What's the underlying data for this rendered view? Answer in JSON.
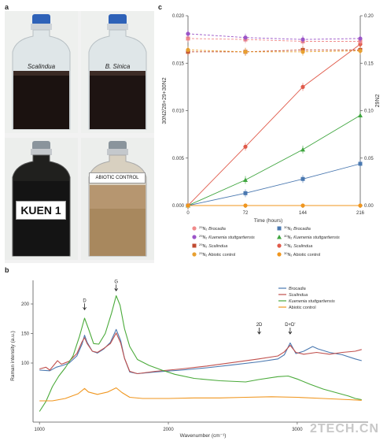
{
  "panels": {
    "a": "a",
    "b": "b",
    "c": "c"
  },
  "photos": [
    {
      "label": "Scalindua",
      "style": "italic"
    },
    {
      "label": "B. Sinica",
      "style": "italic"
    },
    {
      "label": "KUEN 1",
      "style": "card"
    },
    {
      "label": "ABIOTIC CONTROL",
      "style": "card-small"
    }
  ],
  "colors": {
    "brocadia": "#4a78b0",
    "kuenenia": "#3ea53e",
    "scalindua": "#e05a4a",
    "abiotic": "#f0961e",
    "r29_brocadia": "#f08a8a",
    "r29_kuenenia": "#9b55c8",
    "r29_scalindua": "#c04a30",
    "r29_abiotic": "#e8a030"
  },
  "chart_data": [
    {
      "id": "c",
      "type": "line",
      "xlabel": "Time (hours)",
      "ylabel_left": "30N2/28+29+30N2",
      "ylabel_right": "29N2",
      "x": [
        0,
        72,
        144,
        216
      ],
      "x_ticks": [
        "0",
        "72",
        "144",
        "216"
      ],
      "y_left_ticks": [
        "0.000",
        "0.005",
        "0.010",
        "0.015",
        "0.020"
      ],
      "y_right_ticks": [
        "0.00",
        "0.05",
        "0.10",
        "0.15",
        "0.20"
      ],
      "ylim_left": [
        0,
        0.02
      ],
      "ylim_right": [
        0,
        0.2
      ],
      "series": [
        {
          "name": "30N2 Brocadia",
          "axis": "left",
          "color": "#4a78b0",
          "marker": "square",
          "values": [
            0,
            0.0013,
            0.0028,
            0.0044
          ]
        },
        {
          "name": "30N2 Kuenenia stuttgartiensis",
          "axis": "left",
          "color": "#3ea53e",
          "marker": "triangle",
          "values": [
            0,
            0.0027,
            0.0059,
            0.0095
          ]
        },
        {
          "name": "30N2 Scalindua",
          "axis": "left",
          "color": "#e05a4a",
          "marker": "circle",
          "values": [
            0,
            0.0062,
            0.0125,
            0.017
          ]
        },
        {
          "name": "30N2 Abiotic control",
          "axis": "left",
          "color": "#f0961e",
          "marker": "circle",
          "values": [
            0,
            0,
            0,
            0
          ]
        },
        {
          "name": "29N2 Brocadia",
          "axis": "right",
          "color": "#f08a8a",
          "marker": "square",
          "values": [
            0.176,
            0.175,
            0.173,
            0.173
          ]
        },
        {
          "name": "29N2 Kuenenia stuttgartiensis",
          "axis": "right",
          "color": "#9b55c8",
          "marker": "circle",
          "values": [
            0.181,
            0.177,
            0.175,
            0.176
          ]
        },
        {
          "name": "29N2 Scalindua",
          "axis": "right",
          "color": "#c04a30",
          "marker": "square",
          "values": [
            0.162,
            0.162,
            0.164,
            0.164
          ]
        },
        {
          "name": "29N2 Abiotic control",
          "axis": "right",
          "color": "#e8a030",
          "marker": "circle",
          "values": [
            0.164,
            0.162,
            0.162,
            0.163
          ]
        }
      ],
      "legend": [
        {
          "prefix": "29",
          "sp": "Brocadia",
          "italic": true,
          "color": "#f08a8a",
          "marker": "circle"
        },
        {
          "prefix": "30",
          "sp": "Brocadia",
          "italic": true,
          "color": "#4a78b0",
          "marker": "square"
        },
        {
          "prefix": "29",
          "sp": "Kuenenia stuttgartiensis",
          "italic": true,
          "color": "#9b55c8",
          "marker": "circle"
        },
        {
          "prefix": "30",
          "sp": "Kuenenia stuttgartiensis",
          "italic": true,
          "color": "#3ea53e",
          "marker": "triangle"
        },
        {
          "prefix": "29",
          "sp": "Scalindua",
          "italic": true,
          "color": "#c04a30",
          "marker": "square"
        },
        {
          "prefix": "30",
          "sp": "Scalindua",
          "italic": true,
          "color": "#e05a4a",
          "marker": "circle"
        },
        {
          "prefix": "29",
          "sp": "Abiotic control",
          "italic": false,
          "color": "#e8a030",
          "marker": "circle"
        },
        {
          "prefix": "30",
          "sp": "Abiotic control",
          "italic": false,
          "color": "#f0961e",
          "marker": "circle"
        }
      ]
    },
    {
      "id": "b",
      "type": "line",
      "xlabel": "Wavenumber (cm⁻¹)",
      "ylabel": "Raman intensity (a.u.)",
      "xlim": [
        950,
        3550
      ],
      "ylim": [
        0,
        240
      ],
      "x_ticks": [
        1000,
        2000,
        3000
      ],
      "y_ticks": [
        100,
        150,
        200
      ],
      "annotations": [
        {
          "text": "D",
          "x": 1350,
          "y": 193
        },
        {
          "text": "G",
          "x": 1595,
          "y": 225
        },
        {
          "text": "2D",
          "x": 2705,
          "y": 152
        },
        {
          "text": "D+D'",
          "x": 2945,
          "y": 152
        }
      ],
      "legend": [
        "Brocadia",
        "Scalindua",
        "Kuenenia stuttgartiensis",
        "Abiotic control"
      ],
      "series": [
        {
          "name": "Brocadia",
          "color": "#4a78b0",
          "points": [
            [
              1000,
              88
            ],
            [
              1080,
              87
            ],
            [
              1130,
              93
            ],
            [
              1180,
              96
            ],
            [
              1230,
              100
            ],
            [
              1290,
              112
            ],
            [
              1330,
              132
            ],
            [
              1350,
              147
            ],
            [
              1370,
              135
            ],
            [
              1410,
              120
            ],
            [
              1450,
              117
            ],
            [
              1500,
              124
            ],
            [
              1550,
              135
            ],
            [
              1595,
              157
            ],
            [
              1630,
              138
            ],
            [
              1660,
              108
            ],
            [
              1700,
              85
            ],
            [
              1760,
              82
            ],
            [
              1900,
              85
            ],
            [
              2100,
              88
            ],
            [
              2300,
              92
            ],
            [
              2500,
              97
            ],
            [
              2700,
              102
            ],
            [
              2850,
              107
            ],
            [
              2900,
              114
            ],
            [
              2945,
              134
            ],
            [
              2990,
              116
            ],
            [
              3050,
              120
            ],
            [
              3120,
              128
            ],
            [
              3160,
              124
            ],
            [
              3250,
              118
            ],
            [
              3350,
              114
            ],
            [
              3450,
              107
            ],
            [
              3500,
              104
            ]
          ]
        },
        {
          "name": "Scalindua",
          "color": "#c0504d",
          "points": [
            [
              1000,
              90
            ],
            [
              1050,
              93
            ],
            [
              1080,
              88
            ],
            [
              1110,
              96
            ],
            [
              1140,
              104
            ],
            [
              1170,
              98
            ],
            [
              1230,
              103
            ],
            [
              1290,
              116
            ],
            [
              1330,
              136
            ],
            [
              1350,
              143
            ],
            [
              1370,
              133
            ],
            [
              1410,
              120
            ],
            [
              1450,
              118
            ],
            [
              1500,
              125
            ],
            [
              1550,
              133
            ],
            [
              1595,
              151
            ],
            [
              1630,
              134
            ],
            [
              1660,
              108
            ],
            [
              1700,
              86
            ],
            [
              1760,
              82
            ],
            [
              1900,
              86
            ],
            [
              2100,
              90
            ],
            [
              2300,
              95
            ],
            [
              2500,
              101
            ],
            [
              2700,
              107
            ],
            [
              2850,
              112
            ],
            [
              2900,
              119
            ],
            [
              2945,
              130
            ],
            [
              2990,
              118
            ],
            [
              3050,
              115
            ],
            [
              3150,
              118
            ],
            [
              3250,
              115
            ],
            [
              3350,
              118
            ],
            [
              3450,
              120
            ],
            [
              3500,
              123
            ]
          ]
        },
        {
          "name": "Kuenenia stuttgartiensis",
          "color": "#4aaa3a",
          "points": [
            [
              1000,
              18
            ],
            [
              1050,
              35
            ],
            [
              1100,
              60
            ],
            [
              1150,
              78
            ],
            [
              1200,
              92
            ],
            [
              1260,
              112
            ],
            [
              1310,
              145
            ],
            [
              1350,
              176
            ],
            [
              1380,
              158
            ],
            [
              1420,
              133
            ],
            [
              1460,
              132
            ],
            [
              1510,
              150
            ],
            [
              1560,
              185
            ],
            [
              1595,
              214
            ],
            [
              1625,
              198
            ],
            [
              1660,
              158
            ],
            [
              1700,
              128
            ],
            [
              1760,
              106
            ],
            [
              1850,
              96
            ],
            [
              1950,
              88
            ],
            [
              2050,
              81
            ],
            [
              2200,
              74
            ],
            [
              2400,
              70
            ],
            [
              2600,
              68
            ],
            [
              2700,
              72
            ],
            [
              2850,
              77
            ],
            [
              2930,
              78
            ],
            [
              3000,
              73
            ],
            [
              3100,
              64
            ],
            [
              3200,
              56
            ],
            [
              3300,
              50
            ],
            [
              3400,
              44
            ],
            [
              3450,
              40
            ],
            [
              3500,
              38
            ]
          ]
        },
        {
          "name": "Abiotic control",
          "color": "#f0961e",
          "points": [
            [
              1000,
              36
            ],
            [
              1100,
              36
            ],
            [
              1200,
              40
            ],
            [
              1300,
              48
            ],
            [
              1350,
              57
            ],
            [
              1380,
              51
            ],
            [
              1450,
              47
            ],
            [
              1530,
              51
            ],
            [
              1595,
              58
            ],
            [
              1640,
              50
            ],
            [
              1700,
              42
            ],
            [
              1800,
              40
            ],
            [
              2000,
              40
            ],
            [
              2200,
              41
            ],
            [
              2400,
              41
            ],
            [
              2600,
              42
            ],
            [
              2800,
              43
            ],
            [
              3000,
              42
            ],
            [
              3200,
              40
            ],
            [
              3400,
              38
            ],
            [
              3500,
              37
            ]
          ]
        }
      ]
    }
  ],
  "watermark": "2TECH.CN"
}
